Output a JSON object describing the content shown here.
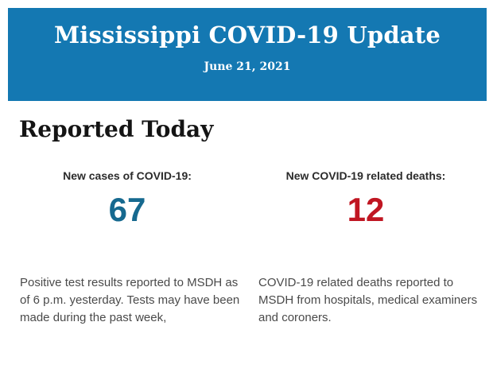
{
  "banner": {
    "title": "Mississippi COVID-19 Update",
    "date": "June 21, 2021",
    "background_color": "#1478b2",
    "text_color": "#ffffff"
  },
  "section": {
    "heading": "Reported Today"
  },
  "stats": [
    {
      "label": "New cases of COVID-19:",
      "value": "67",
      "value_color": "#16698f",
      "description": "Positive test results reported to MSDH as of 6 p.m. yesterday. Tests may have been made during the past week,"
    },
    {
      "label": "New COVID-19 related deaths:",
      "value": "12",
      "value_color": "#c01622",
      "description": "COVID-19 related deaths reported to MSDH from hospitals, medical examiners and coroners."
    }
  ]
}
